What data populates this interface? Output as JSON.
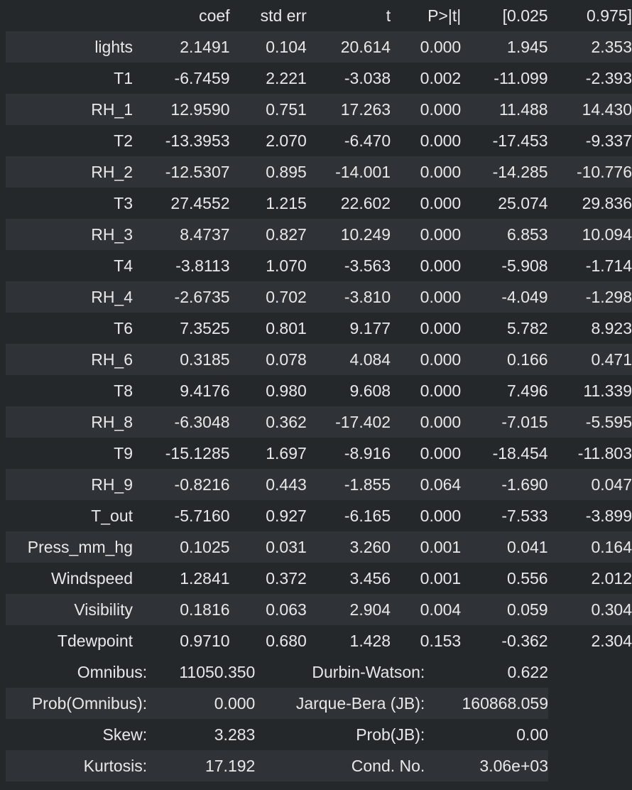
{
  "coef_table": {
    "headers": [
      "",
      "coef",
      "std err",
      "t",
      "P>|t|",
      "[0.025",
      "0.975]"
    ],
    "rows": [
      [
        "lights",
        "2.1491",
        "0.104",
        "20.614",
        "0.000",
        "1.945",
        "2.353"
      ],
      [
        "T1",
        "-6.7459",
        "2.221",
        "-3.038",
        "0.002",
        "-11.099",
        "-2.393"
      ],
      [
        "RH_1",
        "12.9590",
        "0.751",
        "17.263",
        "0.000",
        "11.488",
        "14.430"
      ],
      [
        "T2",
        "-13.3953",
        "2.070",
        "-6.470",
        "0.000",
        "-17.453",
        "-9.337"
      ],
      [
        "RH_2",
        "-12.5307",
        "0.895",
        "-14.001",
        "0.000",
        "-14.285",
        "-10.776"
      ],
      [
        "T3",
        "27.4552",
        "1.215",
        "22.602",
        "0.000",
        "25.074",
        "29.836"
      ],
      [
        "RH_3",
        "8.4737",
        "0.827",
        "10.249",
        "0.000",
        "6.853",
        "10.094"
      ],
      [
        "T4",
        "-3.8113",
        "1.070",
        "-3.563",
        "0.000",
        "-5.908",
        "-1.714"
      ],
      [
        "RH_4",
        "-2.6735",
        "0.702",
        "-3.810",
        "0.000",
        "-4.049",
        "-1.298"
      ],
      [
        "T6",
        "7.3525",
        "0.801",
        "9.177",
        "0.000",
        "5.782",
        "8.923"
      ],
      [
        "RH_6",
        "0.3185",
        "0.078",
        "4.084",
        "0.000",
        "0.166",
        "0.471"
      ],
      [
        "T8",
        "9.4176",
        "0.980",
        "9.608",
        "0.000",
        "7.496",
        "11.339"
      ],
      [
        "RH_8",
        "-6.3048",
        "0.362",
        "-17.402",
        "0.000",
        "-7.015",
        "-5.595"
      ],
      [
        "T9",
        "-15.1285",
        "1.697",
        "-8.916",
        "0.000",
        "-18.454",
        "-11.803"
      ],
      [
        "RH_9",
        "-0.8216",
        "0.443",
        "-1.855",
        "0.064",
        "-1.690",
        "0.047"
      ],
      [
        "T_out",
        "-5.7160",
        "0.927",
        "-6.165",
        "0.000",
        "-7.533",
        "-3.899"
      ],
      [
        "Press_mm_hg",
        "0.1025",
        "0.031",
        "3.260",
        "0.001",
        "0.041",
        "0.164"
      ],
      [
        "Windspeed",
        "1.2841",
        "0.372",
        "3.456",
        "0.001",
        "0.556",
        "2.012"
      ],
      [
        "Visibility",
        "0.1816",
        "0.063",
        "2.904",
        "0.004",
        "0.059",
        "0.304"
      ],
      [
        "Tdewpoint",
        "0.9710",
        "0.680",
        "1.428",
        "0.153",
        "-0.362",
        "2.304"
      ]
    ]
  },
  "diagnostics": {
    "rows": [
      [
        "Omnibus:",
        "11050.350",
        "Durbin-Watson:",
        "0.622"
      ],
      [
        "Prob(Omnibus):",
        "0.000",
        "Jarque-Bera (JB):",
        "160868.059"
      ],
      [
        "Skew:",
        "3.283",
        "Prob(JB):",
        "0.00"
      ],
      [
        "Kurtosis:",
        "17.192",
        "Cond. No.",
        "3.06e+03"
      ]
    ]
  }
}
